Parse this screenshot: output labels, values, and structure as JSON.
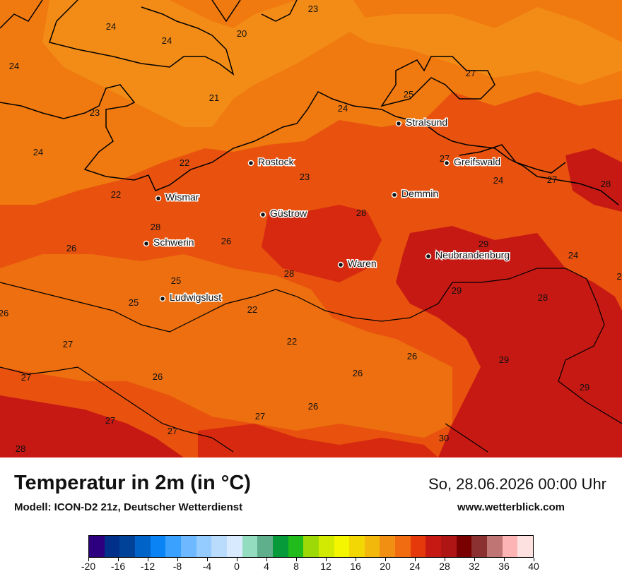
{
  "header": {
    "title": "Temperatur in 2m (in °C)",
    "model": "Modell: ICON-D2 21z, Deutscher Wetterdienst",
    "datetime": "So, 28.06.2026 00:00 Uhr",
    "website": "www.wetterblick.com"
  },
  "map": {
    "cities": [
      {
        "name": "Stralsund"
      },
      {
        "name": "Rostock"
      },
      {
        "name": "Greifswald"
      },
      {
        "name": "Wismar"
      },
      {
        "name": "Demmin"
      },
      {
        "name": "Güstrow"
      },
      {
        "name": "Schwerin"
      },
      {
        "name": "Neubrandenburg"
      },
      {
        "name": "Waren"
      },
      {
        "name": "Ludwigslust"
      }
    ],
    "temperature_labels": [
      {
        "value": "23"
      },
      {
        "value": "24"
      },
      {
        "value": "24"
      },
      {
        "value": "20"
      },
      {
        "value": "24"
      },
      {
        "value": "27"
      },
      {
        "value": "25"
      },
      {
        "value": "21"
      },
      {
        "value": "24"
      },
      {
        "value": "23"
      },
      {
        "value": "24"
      },
      {
        "value": "27"
      },
      {
        "value": "22"
      },
      {
        "value": "23"
      },
      {
        "value": "24"
      },
      {
        "value": "27"
      },
      {
        "value": "28"
      },
      {
        "value": "22"
      },
      {
        "value": "28"
      },
      {
        "value": "28"
      },
      {
        "value": "29"
      },
      {
        "value": "26"
      },
      {
        "value": "26"
      },
      {
        "value": "24"
      },
      {
        "value": "25"
      },
      {
        "value": "28"
      },
      {
        "value": "2"
      },
      {
        "value": "25"
      },
      {
        "value": "29"
      },
      {
        "value": "26"
      },
      {
        "value": "22"
      },
      {
        "value": "28"
      },
      {
        "value": "27"
      },
      {
        "value": "22"
      },
      {
        "value": "26"
      },
      {
        "value": "29"
      },
      {
        "value": "27"
      },
      {
        "value": "26"
      },
      {
        "value": "26"
      },
      {
        "value": "29"
      },
      {
        "value": "26"
      },
      {
        "value": "27"
      },
      {
        "value": "27"
      },
      {
        "value": "27"
      },
      {
        "value": "30"
      },
      {
        "value": "28"
      }
    ]
  },
  "legend": {
    "colors": [
      "#2d0080",
      "#00308a",
      "#004298",
      "#0063c8",
      "#0a84f5",
      "#3ba1ff",
      "#6eb8ff",
      "#95ccff",
      "#b9dbfc",
      "#d8eafe",
      "#93dcc0",
      "#5fae8c",
      "#069a3a",
      "#21bc1c",
      "#9cd907",
      "#d2ea02",
      "#f4f600",
      "#f3d704",
      "#f3b80c",
      "#f18f12",
      "#f16b10",
      "#e6390b",
      "#c71913",
      "#b01516",
      "#7a0000",
      "#8b3131",
      "#c07575",
      "#fcb4b4",
      "#fde0e0"
    ],
    "ticks": [
      "-20",
      "-16",
      "-12",
      "-8",
      "-4",
      "0",
      "4",
      "8",
      "12",
      "16",
      "20",
      "24",
      "28",
      "32",
      "36",
      "40"
    ]
  }
}
